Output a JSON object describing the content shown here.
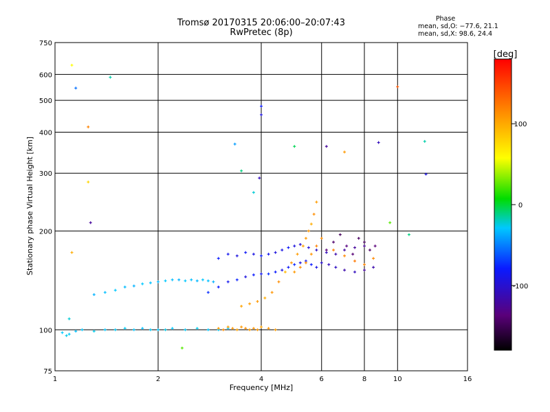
{
  "chart_data": {
    "type": "scatter",
    "title": "Tromsø 20170315 20:06:00–20:07:43",
    "subtitle": "RwPretec (8p)",
    "stats": {
      "heading": "Phase",
      "line1": "mean, sd,O: −77.6, 21.1",
      "line2": "mean, sd,X:  98.6, 24.4"
    },
    "xlabel": "Frequency [MHz]",
    "ylabel": "Stationary phase Virtual Height [km]",
    "x_scale": "log",
    "y_scale": "log",
    "xlim": [
      1,
      16
    ],
    "ylim": [
      75,
      750
    ],
    "x_ticks": [
      1,
      2,
      4,
      6,
      8,
      10,
      16
    ],
    "y_ticks": [
      75,
      100,
      200,
      300,
      400,
      500,
      600,
      750
    ],
    "grid": true,
    "colorbar": {
      "label": "[deg]",
      "range": [
        -180,
        180
      ],
      "ticks": [
        100,
        0,
        -100
      ]
    },
    "series": [
      {
        "trace": "cyan-low",
        "x": [
          1.05,
          1.08,
          1.1,
          1.15,
          1.2,
          1.3,
          1.4,
          1.5,
          1.6,
          1.7,
          1.8,
          1.9,
          2.0,
          2.1,
          2.2,
          2.4,
          2.6,
          2.8,
          3.0,
          3.2
        ],
        "y": [
          98,
          96,
          97,
          99,
          100,
          99,
          100,
          100,
          101,
          100,
          101,
          100,
          100,
          100,
          101,
          100,
          101,
          100,
          100,
          101
        ],
        "phase": [
          -60,
          -55,
          -58,
          -62,
          -60,
          -55,
          -60,
          -58,
          -57,
          -60,
          -62,
          -58,
          -60,
          -55,
          -60,
          -58,
          -55,
          -60,
          -58,
          -60
        ]
      },
      {
        "trace": "orange-low",
        "x": [
          3.0,
          3.1,
          3.2,
          3.3,
          3.4,
          3.5,
          3.6,
          3.7,
          3.8,
          3.9,
          4.0,
          4.2,
          4.4
        ],
        "y": [
          101,
          100,
          102,
          101,
          100,
          102,
          101,
          100,
          101,
          100,
          102,
          101,
          100
        ],
        "phase": [
          110,
          115,
          108,
          112,
          105,
          110,
          115,
          108,
          112,
          110,
          105,
          112,
          108
        ]
      },
      {
        "trace": "cyan-mid",
        "x": [
          1.3,
          1.4,
          1.5,
          1.6,
          1.7,
          1.8,
          1.9,
          2.0,
          2.1,
          2.2,
          2.3,
          2.4,
          2.5,
          2.6,
          2.7,
          2.8,
          2.9
        ],
        "y": [
          128,
          130,
          132,
          135,
          136,
          138,
          139,
          140,
          141,
          142,
          142,
          141,
          142,
          141,
          142,
          141,
          140
        ],
        "phase": [
          -65,
          -62,
          -60,
          -63,
          -65,
          -60,
          -62,
          -64,
          -60,
          -62,
          -65,
          -60,
          -62,
          -64,
          -60,
          -62,
          -65
        ]
      },
      {
        "trace": "blue-mid",
        "x": [
          2.8,
          3.0,
          3.2,
          3.4,
          3.6,
          3.8,
          4.0,
          4.2,
          4.4,
          4.6,
          4.8,
          5.0,
          5.2,
          5.4,
          5.6,
          5.8,
          6.0,
          6.3,
          6.6,
          7.0,
          7.5,
          8.0,
          8.5
        ],
        "y": [
          130,
          135,
          140,
          142,
          145,
          147,
          148,
          148,
          150,
          152,
          155,
          158,
          160,
          162,
          158,
          155,
          160,
          158,
          155,
          152,
          150,
          152,
          155
        ],
        "phase": [
          -95,
          -100,
          -105,
          -98,
          -110,
          -100,
          -105,
          -95,
          -100,
          -108,
          -102,
          -98,
          -110,
          -105,
          -100,
          -108,
          -115,
          -120,
          -118,
          -125,
          -120,
          -130,
          -125
        ]
      },
      {
        "trace": "blue-upper",
        "x": [
          3.0,
          3.2,
          3.4,
          3.6,
          3.8,
          4.0,
          4.2,
          4.4,
          4.6,
          4.8,
          5.0,
          5.2,
          5.5,
          5.8,
          6.2,
          6.6,
          7.0,
          7.5,
          8.0
        ],
        "y": [
          165,
          170,
          168,
          172,
          170,
          168,
          170,
          172,
          175,
          178,
          180,
          182,
          178,
          175,
          172,
          170,
          175,
          178,
          180
        ],
        "phase": [
          -100,
          -105,
          -110,
          -102,
          -108,
          -100,
          -105,
          -110,
          -108,
          -102,
          -110,
          -115,
          -112,
          -118,
          -120,
          -125,
          -128,
          -130,
          -132
        ]
      },
      {
        "trace": "orange-upper",
        "x": [
          3.5,
          3.7,
          3.9,
          4.1,
          4.3,
          4.5,
          4.7,
          4.9,
          5.1,
          5.3,
          5.4,
          5.5,
          5.6,
          5.7,
          5.8
        ],
        "y": [
          118,
          120,
          122,
          125,
          130,
          140,
          150,
          160,
          170,
          180,
          190,
          200,
          210,
          225,
          245
        ],
        "phase": [
          105,
          108,
          110,
          100,
          112,
          115,
          95,
          110,
          108,
          105,
          110,
          112,
          100,
          115,
          108
        ]
      },
      {
        "trace": "yellow-upper",
        "x": [
          5.0,
          5.2,
          5.4,
          5.6,
          5.8,
          6.0,
          6.5,
          7.0,
          7.5,
          8.0,
          8.5
        ],
        "y": [
          150,
          155,
          160,
          170,
          180,
          190,
          175,
          168,
          162,
          158,
          165
        ],
        "phase": [
          110,
          115,
          118,
          112,
          120,
          115,
          122,
          118,
          125,
          120,
          118
        ]
      },
      {
        "trace": "violet-upper",
        "x": [
          6.2,
          6.5,
          6.8,
          7.1,
          7.4,
          7.7,
          8.0,
          8.3,
          8.6
        ],
        "y": [
          175,
          185,
          195,
          180,
          170,
          190,
          185,
          175,
          180
        ],
        "phase": [
          -140,
          -145,
          -150,
          -138,
          -142,
          -148,
          -150,
          -145,
          -140
        ]
      },
      {
        "trace": "scattered",
        "x": [
          1.12,
          1.12,
          1.25,
          1.45,
          1.15,
          1.25,
          1.27,
          3.35,
          3.5,
          3.95,
          4.0,
          4.0,
          3.8,
          5.0,
          6.2,
          7.0,
          8.8,
          10.0,
          12.0,
          12.1,
          10.8,
          9.5,
          1.1,
          2.35
        ],
        "y": [
          640,
          172,
          415,
          588,
          545,
          282,
          212,
          368,
          305,
          290,
          452,
          480,
          262,
          362,
          362,
          348,
          372,
          550,
          375,
          298,
          195,
          212,
          108,
          88
        ],
        "phase": [
          60,
          100,
          120,
          -40,
          -80,
          80,
          -130,
          -70,
          -30,
          -120,
          -110,
          -100,
          -50,
          -20,
          -130,
          110,
          -120,
          140,
          -40,
          -110,
          -30,
          20,
          -50,
          20
        ]
      }
    ]
  }
}
